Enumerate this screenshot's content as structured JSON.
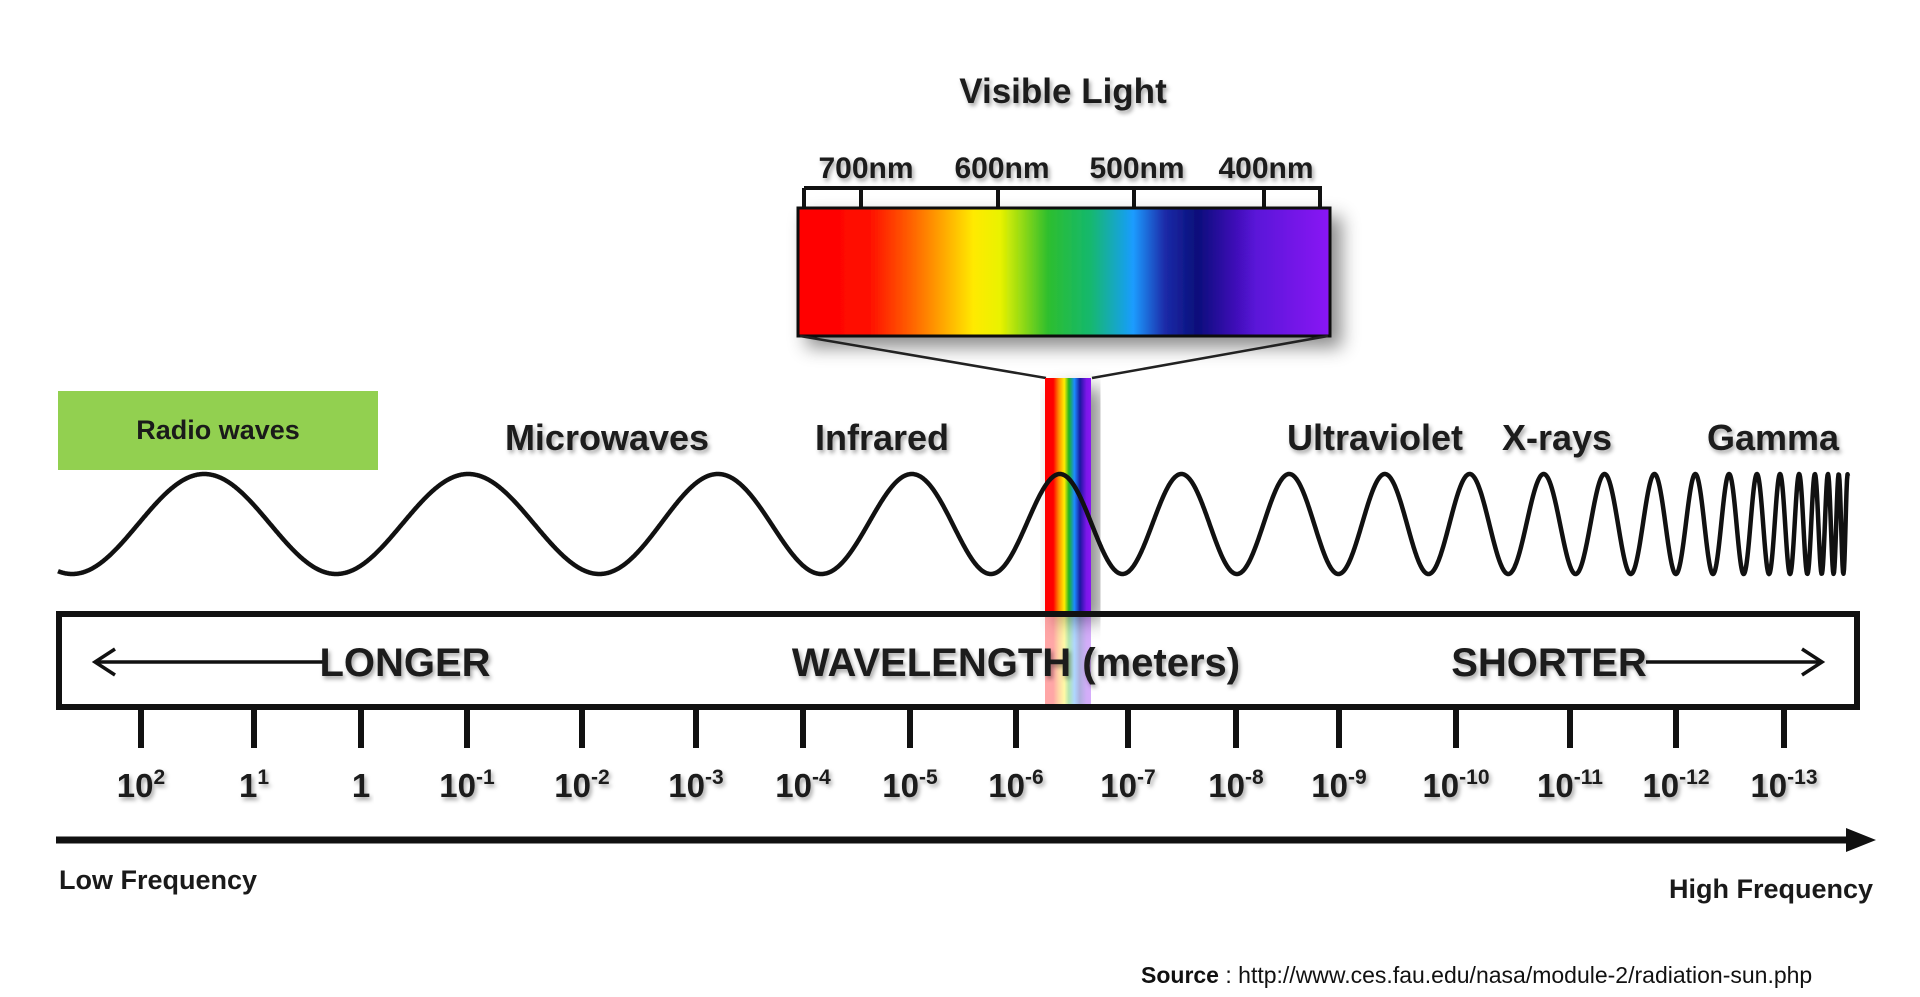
{
  "visible_light": {
    "title": "Visible Light",
    "nm_labels": [
      "700nm",
      "600nm",
      "500nm",
      "400nm"
    ]
  },
  "bands": {
    "radio": "Radio waves",
    "microwaves": "Microwaves",
    "infrared": "Infrared",
    "ultraviolet": "Ultraviolet",
    "xrays": "X-rays",
    "gamma": "Gamma"
  },
  "colors": {
    "radio_box": "#92d050",
    "wave_stroke": "#111111"
  },
  "wavelength_bar": {
    "longer": "LONGER",
    "center": "WAVELENGTH (meters)",
    "shorter": "SHORTER"
  },
  "scale": [
    {
      "base": "10",
      "exp": "2"
    },
    {
      "base": "1",
      "exp": "1"
    },
    {
      "base": "1",
      "exp": ""
    },
    {
      "base": "10",
      "exp": "-1"
    },
    {
      "base": "10",
      "exp": "-2"
    },
    {
      "base": "10",
      "exp": "-3"
    },
    {
      "base": "10",
      "exp": "-4"
    },
    {
      "base": "10",
      "exp": "-5"
    },
    {
      "base": "10",
      "exp": "-6"
    },
    {
      "base": "10",
      "exp": "-7"
    },
    {
      "base": "10",
      "exp": "-8"
    },
    {
      "base": "10",
      "exp": "-9"
    },
    {
      "base": "10",
      "exp": "-10"
    },
    {
      "base": "10",
      "exp": "-11"
    },
    {
      "base": "10",
      "exp": "-12"
    },
    {
      "base": "10",
      "exp": "-13"
    }
  ],
  "frequency": {
    "low": "Low Frequency",
    "high": "High Frequency"
  },
  "source": {
    "label": "Source",
    "text": " : http://www.ces.fau.edu/nasa/module-2/radiation-sun.php"
  }
}
